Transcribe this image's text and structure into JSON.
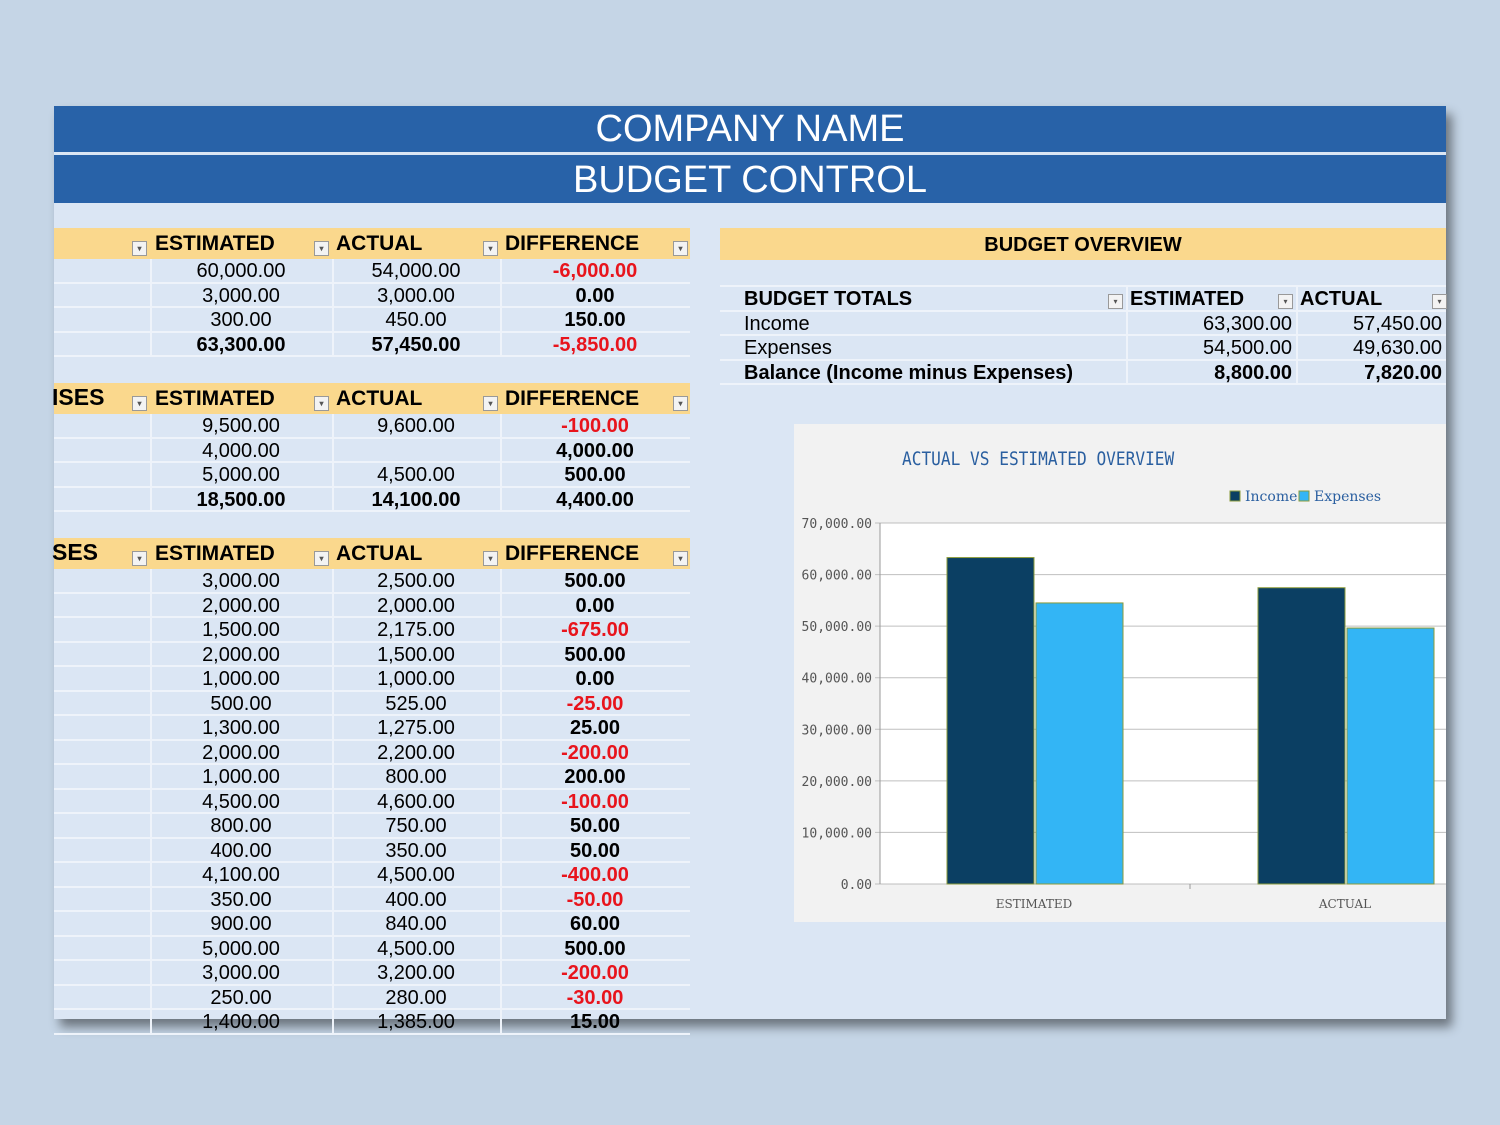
{
  "header": {
    "company": "COMPANY NAME",
    "title": "BUDGET CONTROL"
  },
  "income_table": {
    "label": "",
    "headers": [
      "ESTIMATED",
      "ACTUAL",
      "DIFFERENCE"
    ],
    "rows": [
      [
        "60,000.00",
        "54,000.00",
        "-6,000.00"
      ],
      [
        "3,000.00",
        "3,000.00",
        "0.00"
      ],
      [
        "300.00",
        "450.00",
        "150.00"
      ],
      [
        "63,300.00",
        "57,450.00",
        "-5,850.00"
      ]
    ]
  },
  "expenses_table_1": {
    "label": "ISES",
    "headers": [
      "ESTIMATED",
      "ACTUAL",
      "DIFFERENCE"
    ],
    "rows": [
      [
        "9,500.00",
        "9,600.00",
        "-100.00"
      ],
      [
        "4,000.00",
        "",
        "4,000.00"
      ],
      [
        "5,000.00",
        "4,500.00",
        "500.00"
      ],
      [
        "18,500.00",
        "14,100.00",
        "4,400.00"
      ]
    ]
  },
  "expenses_table_2": {
    "label": "SES",
    "headers": [
      "ESTIMATED",
      "ACTUAL",
      "DIFFERENCE"
    ],
    "rows": [
      [
        "3,000.00",
        "2,500.00",
        "500.00"
      ],
      [
        "2,000.00",
        "2,000.00",
        "0.00"
      ],
      [
        "1,500.00",
        "2,175.00",
        "-675.00"
      ],
      [
        "2,000.00",
        "1,500.00",
        "500.00"
      ],
      [
        "1,000.00",
        "1,000.00",
        "0.00"
      ],
      [
        "500.00",
        "525.00",
        "-25.00"
      ],
      [
        "1,300.00",
        "1,275.00",
        "25.00"
      ],
      [
        "2,000.00",
        "2,200.00",
        "-200.00"
      ],
      [
        "1,000.00",
        "800.00",
        "200.00"
      ],
      [
        "4,500.00",
        "4,600.00",
        "-100.00"
      ],
      [
        "800.00",
        "750.00",
        "50.00"
      ],
      [
        "400.00",
        "350.00",
        "50.00"
      ],
      [
        "4,100.00",
        "4,500.00",
        "-400.00"
      ],
      [
        "350.00",
        "400.00",
        "-50.00"
      ],
      [
        "900.00",
        "840.00",
        "60.00"
      ],
      [
        "5,000.00",
        "4,500.00",
        "500.00"
      ],
      [
        "3,000.00",
        "3,200.00",
        "-200.00"
      ],
      [
        "250.00",
        "280.00",
        "-30.00"
      ],
      [
        "1,400.00",
        "1,385.00",
        "15.00"
      ]
    ]
  },
  "overview": {
    "title": "BUDGET OVERVIEW",
    "headers": [
      "BUDGET TOTALS",
      "ESTIMATED",
      "ACTUAL"
    ],
    "rows": [
      [
        "Income",
        "63,300.00",
        "57,450.00"
      ],
      [
        "Expenses",
        "54,500.00",
        "49,630.00"
      ],
      [
        "Balance (Income minus Expenses)",
        "8,800.00",
        "7,820.00"
      ]
    ]
  },
  "chart_data": {
    "type": "bar",
    "title": "ACTUAL VS ESTIMATED OVERVIEW",
    "categories": [
      "ESTIMATED",
      "ACTUAL"
    ],
    "series": [
      {
        "name": "Income",
        "values": [
          63300,
          57450
        ],
        "color": "#0b3f63"
      },
      {
        "name": "Expenses",
        "values": [
          54500,
          49630
        ],
        "color": "#33b5f5"
      }
    ],
    "ylim": [
      0,
      70000
    ],
    "yticks": [
      "0.00",
      "10,000.00",
      "20,000.00",
      "30,000.00",
      "40,000.00",
      "50,000.00",
      "60,000.00",
      "70,000.00"
    ],
    "legend": "top-right",
    "grid": true
  }
}
